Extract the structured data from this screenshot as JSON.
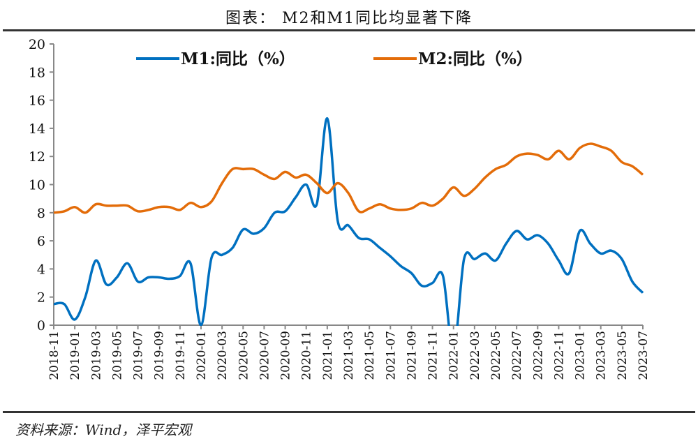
{
  "title": "图表： M2和M1同比均显著下降",
  "source": "资料来源：Wind，泽平宏观",
  "chart_data": {
    "type": "line",
    "title": "图表： M2和M1同比均显著下降",
    "ylim": [
      0,
      20
    ],
    "yticks": [
      0,
      2,
      4,
      6,
      8,
      10,
      12,
      14,
      16,
      18,
      20
    ],
    "grid": false,
    "legend": "top",
    "x": [
      "2018-11",
      "2018-12",
      "2019-01",
      "2019-02",
      "2019-03",
      "2019-04",
      "2019-05",
      "2019-06",
      "2019-07",
      "2019-08",
      "2019-09",
      "2019-10",
      "2019-11",
      "2019-12",
      "2020-01",
      "2020-02",
      "2020-03",
      "2020-04",
      "2020-05",
      "2020-06",
      "2020-07",
      "2020-08",
      "2020-09",
      "2020-10",
      "2020-11",
      "2020-12",
      "2021-01",
      "2021-02",
      "2021-03",
      "2021-04",
      "2021-05",
      "2021-06",
      "2021-07",
      "2021-08",
      "2021-09",
      "2021-10",
      "2021-11",
      "2021-12",
      "2022-01",
      "2022-02",
      "2022-03",
      "2022-04",
      "2022-05",
      "2022-06",
      "2022-07",
      "2022-08",
      "2022-09",
      "2022-10",
      "2022-11",
      "2022-12",
      "2023-01",
      "2023-02",
      "2023-03",
      "2023-04",
      "2023-05",
      "2023-06",
      "2023-07"
    ],
    "series": [
      {
        "name": "M1:同比（%）",
        "color": "#0070C0",
        "values": [
          1.5,
          1.5,
          0.4,
          2.0,
          4.6,
          2.9,
          3.4,
          4.4,
          3.1,
          3.4,
          3.4,
          3.3,
          3.5,
          4.4,
          0.0,
          4.8,
          5.0,
          5.5,
          6.8,
          6.5,
          6.9,
          8.0,
          8.1,
          9.1,
          10.0,
          8.6,
          14.7,
          7.4,
          7.1,
          6.2,
          6.1,
          5.5,
          4.9,
          4.2,
          3.7,
          2.8,
          3.0,
          3.5,
          -1.9,
          4.7,
          4.7,
          5.1,
          4.6,
          5.8,
          6.7,
          6.1,
          6.4,
          5.8,
          4.6,
          3.7,
          6.7,
          5.8,
          5.1,
          5.3,
          4.7,
          3.1,
          2.3
        ]
      },
      {
        "name": "M2:同比（%）",
        "color": "#E36C09",
        "values": [
          8.0,
          8.1,
          8.4,
          8.0,
          8.6,
          8.5,
          8.5,
          8.5,
          8.1,
          8.2,
          8.4,
          8.4,
          8.2,
          8.7,
          8.4,
          8.8,
          10.1,
          11.1,
          11.1,
          11.1,
          10.7,
          10.4,
          10.9,
          10.5,
          10.7,
          10.1,
          9.4,
          10.1,
          9.4,
          8.1,
          8.3,
          8.6,
          8.3,
          8.2,
          8.3,
          8.7,
          8.5,
          9.0,
          9.8,
          9.2,
          9.7,
          10.5,
          11.1,
          11.4,
          12.0,
          12.2,
          12.1,
          11.8,
          12.4,
          11.8,
          12.6,
          12.9,
          12.7,
          12.4,
          11.6,
          11.3,
          10.7
        ]
      }
    ]
  }
}
